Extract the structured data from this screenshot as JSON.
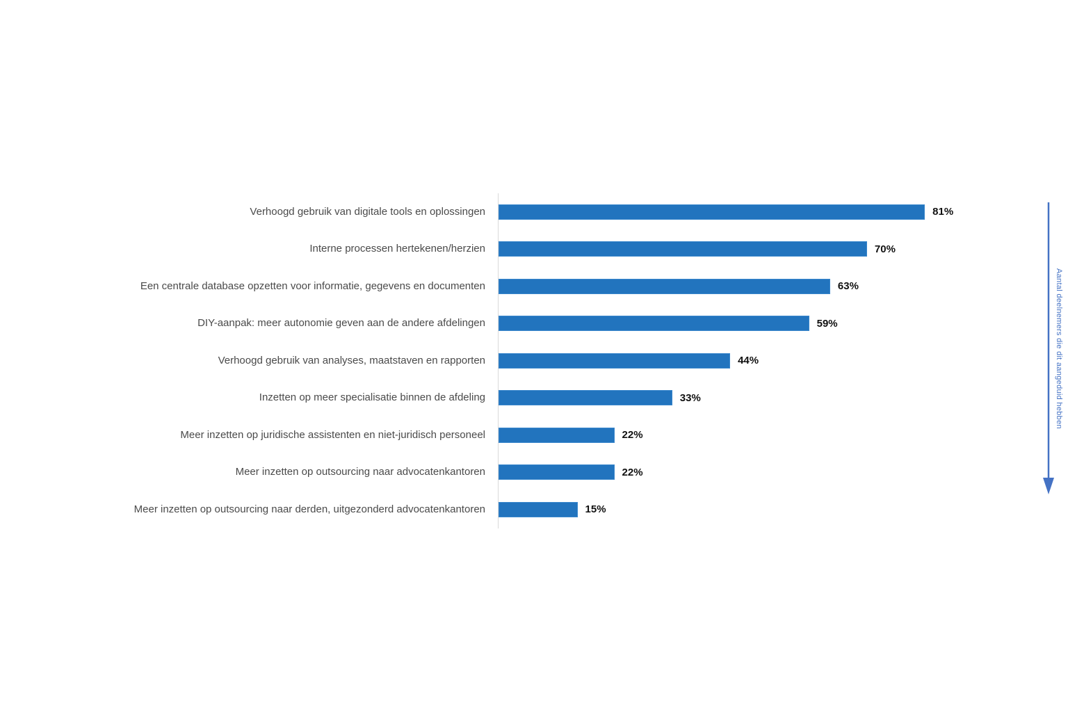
{
  "chart_data": {
    "type": "bar",
    "orientation": "horizontal",
    "title": "",
    "categories": [
      "Verhoogd gebruik van digitale tools en oplossingen",
      "Interne processen hertekenen/herzien",
      "Een centrale database opzetten voor informatie, gegevens en documenten",
      "DIY-aanpak: meer autonomie geven aan de andere afdelingen",
      "Verhoogd gebruik van analyses, maatstaven en rapporten",
      "Inzetten op meer specialisatie binnen de afdeling",
      "Meer inzetten op juridische assistenten en niet-juridisch personeel",
      "Meer inzetten op outsourcing naar advocatenkantoren",
      "Meer inzetten op outsourcing naar derden, uitgezonderd advocatenkantoren"
    ],
    "values": [
      81,
      70,
      63,
      59,
      44,
      33,
      22,
      22,
      15
    ],
    "value_labels": [
      "81%",
      "70%",
      "63%",
      "59%",
      "44%",
      "33%",
      "22%",
      "22%",
      "15%"
    ],
    "xlim": [
      0,
      100
    ],
    "grid": false,
    "legend_position": "none",
    "bar_color": "#2274BE",
    "axis_line_color": "#D9D9D9",
    "category_label_color": "#4A4A4A",
    "value_label_color": "#111111",
    "annotation": {
      "text": "Aantal deelnemers die dit aangeduid hebben",
      "color": "#4472C4",
      "arrow_direction": "down"
    }
  }
}
